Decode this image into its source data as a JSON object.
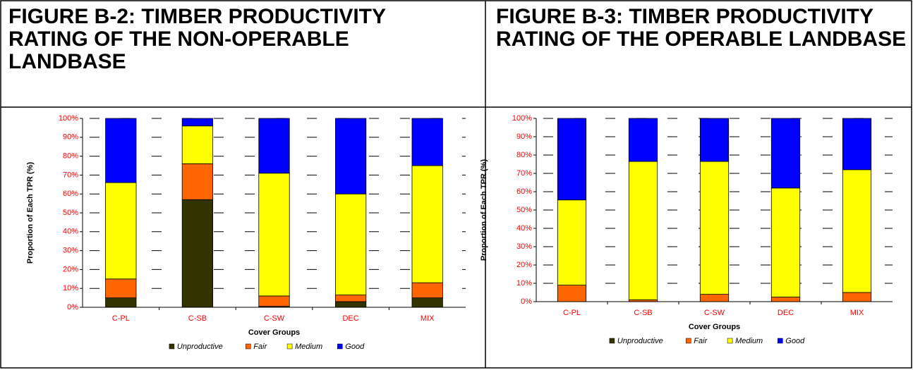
{
  "chart_data": [
    {
      "type": "stacked_bar",
      "title": "FIGURE B-2: TIMBER PRODUCTIVITY RATING OF THE NON-OPERABLE LANDBASE",
      "xlabel": "Cover Groups",
      "ylabel": "Proportion of Each TPR (%)",
      "categories": [
        "C-PL",
        "C-SB",
        "C-SW",
        "DEC",
        "MIX"
      ],
      "series": [
        {
          "name": "Unproductive",
          "color": "#333300",
          "values": [
            5,
            57,
            0.5,
            3,
            5
          ]
        },
        {
          "name": "Fair",
          "color": "#ff6600",
          "values": [
            10,
            19,
            5.5,
            3.5,
            8
          ]
        },
        {
          "name": "Medium",
          "color": "#ffff00",
          "values": [
            51,
            20,
            65,
            53.5,
            62
          ]
        },
        {
          "name": "Good",
          "color": "#0000ff",
          "values": [
            34,
            4,
            29,
            40,
            25
          ]
        }
      ],
      "ylim": [
        0,
        100
      ],
      "yticks": [
        {
          "value": 0,
          "label": "0%"
        },
        {
          "value": 10,
          "label": "10%"
        },
        {
          "value": 20,
          "label": "20%"
        },
        {
          "value": 30,
          "label": "30%"
        },
        {
          "value": 40,
          "label": "40%"
        },
        {
          "value": 50,
          "label": "50%"
        },
        {
          "value": 60,
          "label": "60%"
        },
        {
          "value": 70,
          "label": "70%"
        },
        {
          "value": 80,
          "label": "80%"
        },
        {
          "value": 90,
          "label": "90%"
        },
        {
          "value": 100,
          "label": "100%"
        }
      ],
      "grid": true,
      "legend": "bottom"
    },
    {
      "type": "stacked_bar",
      "title": "FIGURE B-3: TIMBER PRODUCTIVITY RATING OF THE OPERABLE LANDBASE",
      "xlabel": "Cover Groups",
      "ylabel": "Proportion of Each TPR (%)",
      "categories": [
        "C-PL",
        "C-SB",
        "C-SW",
        "DEC",
        "MIX"
      ],
      "series": [
        {
          "name": "Unproductive",
          "color": "#333300",
          "values": [
            0,
            0,
            0,
            0,
            0
          ]
        },
        {
          "name": "Fair",
          "color": "#ff6600",
          "values": [
            9,
            1,
            4,
            2.5,
            5
          ]
        },
        {
          "name": "Medium",
          "color": "#ffff00",
          "values": [
            46.5,
            75.5,
            72.5,
            59.5,
            67
          ]
        },
        {
          "name": "Good",
          "color": "#0000ff",
          "values": [
            44.5,
            23.5,
            23.5,
            38,
            28
          ]
        }
      ],
      "ylim": [
        0,
        100
      ],
      "yticks": [
        {
          "value": 0,
          "label": "0%"
        },
        {
          "value": 10,
          "label": "10%"
        },
        {
          "value": 20,
          "label": "20%"
        },
        {
          "value": 30,
          "label": "30%"
        },
        {
          "value": 40,
          "label": "40%"
        },
        {
          "value": 50,
          "label": "50%"
        },
        {
          "value": 60,
          "label": "60%"
        },
        {
          "value": 70,
          "label": "70%"
        },
        {
          "value": 80,
          "label": "80%"
        },
        {
          "value": 90,
          "label": "90%"
        },
        {
          "value": 100,
          "label": "100%"
        }
      ],
      "grid": true,
      "legend": "bottom"
    }
  ]
}
